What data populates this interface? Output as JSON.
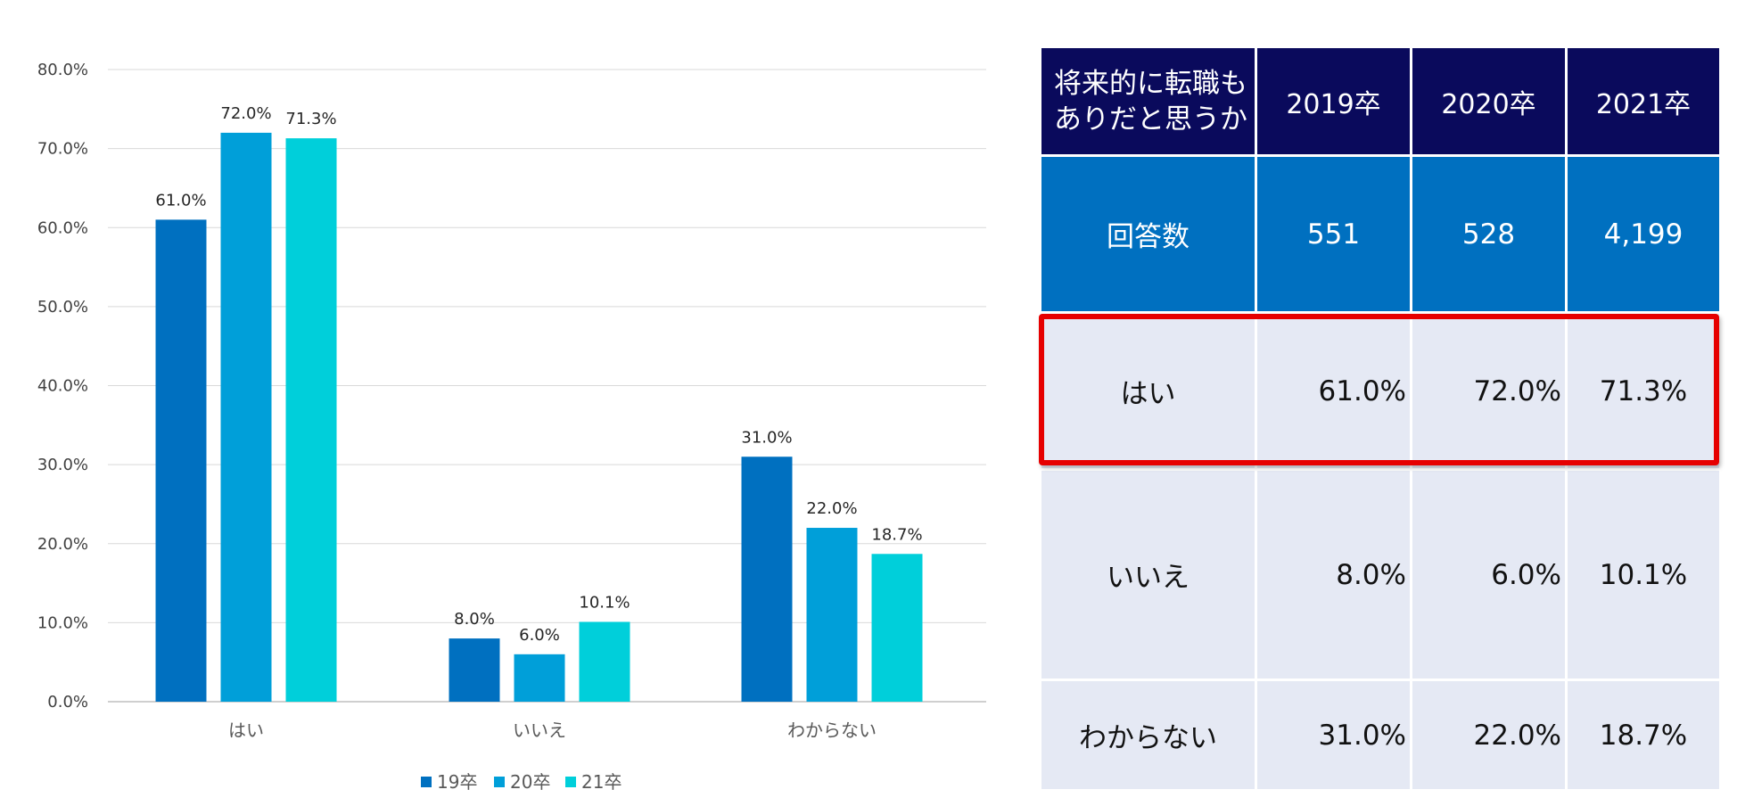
{
  "chart_data": {
    "type": "bar",
    "categories": [
      "はい",
      "いいえ",
      "わからない"
    ],
    "series": [
      {
        "name": "19卒",
        "values": [
          61.0,
          8.0,
          31.0
        ],
        "color": "#0070c0",
        "labels": [
          "61.0%",
          "8.0%",
          "31.0%"
        ]
      },
      {
        "name": "20卒",
        "values": [
          72.0,
          6.0,
          22.0
        ],
        "color": "#009fd9",
        "labels": [
          "72.0%",
          "6.0%",
          "22.0%"
        ]
      },
      {
        "name": "21卒",
        "values": [
          71.3,
          10.1,
          18.7
        ],
        "color": "#00cfda",
        "labels": [
          "71.3%",
          "10.1%",
          "18.7%"
        ]
      }
    ],
    "yticks": [
      "0.0%",
      "10.0%",
      "20.0%",
      "30.0%",
      "40.0%",
      "50.0%",
      "60.0%",
      "70.0%",
      "80.0%"
    ],
    "ylim": [
      0,
      80
    ],
    "grid": true,
    "legend": "bottom",
    "title": "",
    "xlabel": "",
    "ylabel": ""
  },
  "table": {
    "header": {
      "label": "将来的に転職もありだと思うか",
      "label_lines": [
        "将来的に転職も",
        "ありだと思うか"
      ],
      "years": [
        "2019卒",
        "2020卒",
        "2021卒"
      ]
    },
    "counts": {
      "label": "回答数",
      "values": [
        "551",
        "528",
        "4,199"
      ]
    },
    "rows": [
      {
        "label": "はい",
        "values": [
          "61.0%",
          "72.0%",
          "71.3%"
        ]
      },
      {
        "label": "いいえ",
        "values": [
          "8.0%",
          "6.0%",
          "10.1%"
        ]
      },
      {
        "label": "わからない",
        "values": [
          "31.0%",
          "22.0%",
          "18.7%"
        ]
      }
    ]
  },
  "colors": {
    "header_bg": "#0a0a5c",
    "count_bg": "#0070c0",
    "row_bg": "#e5e9f4",
    "highlight": "#e60000"
  }
}
